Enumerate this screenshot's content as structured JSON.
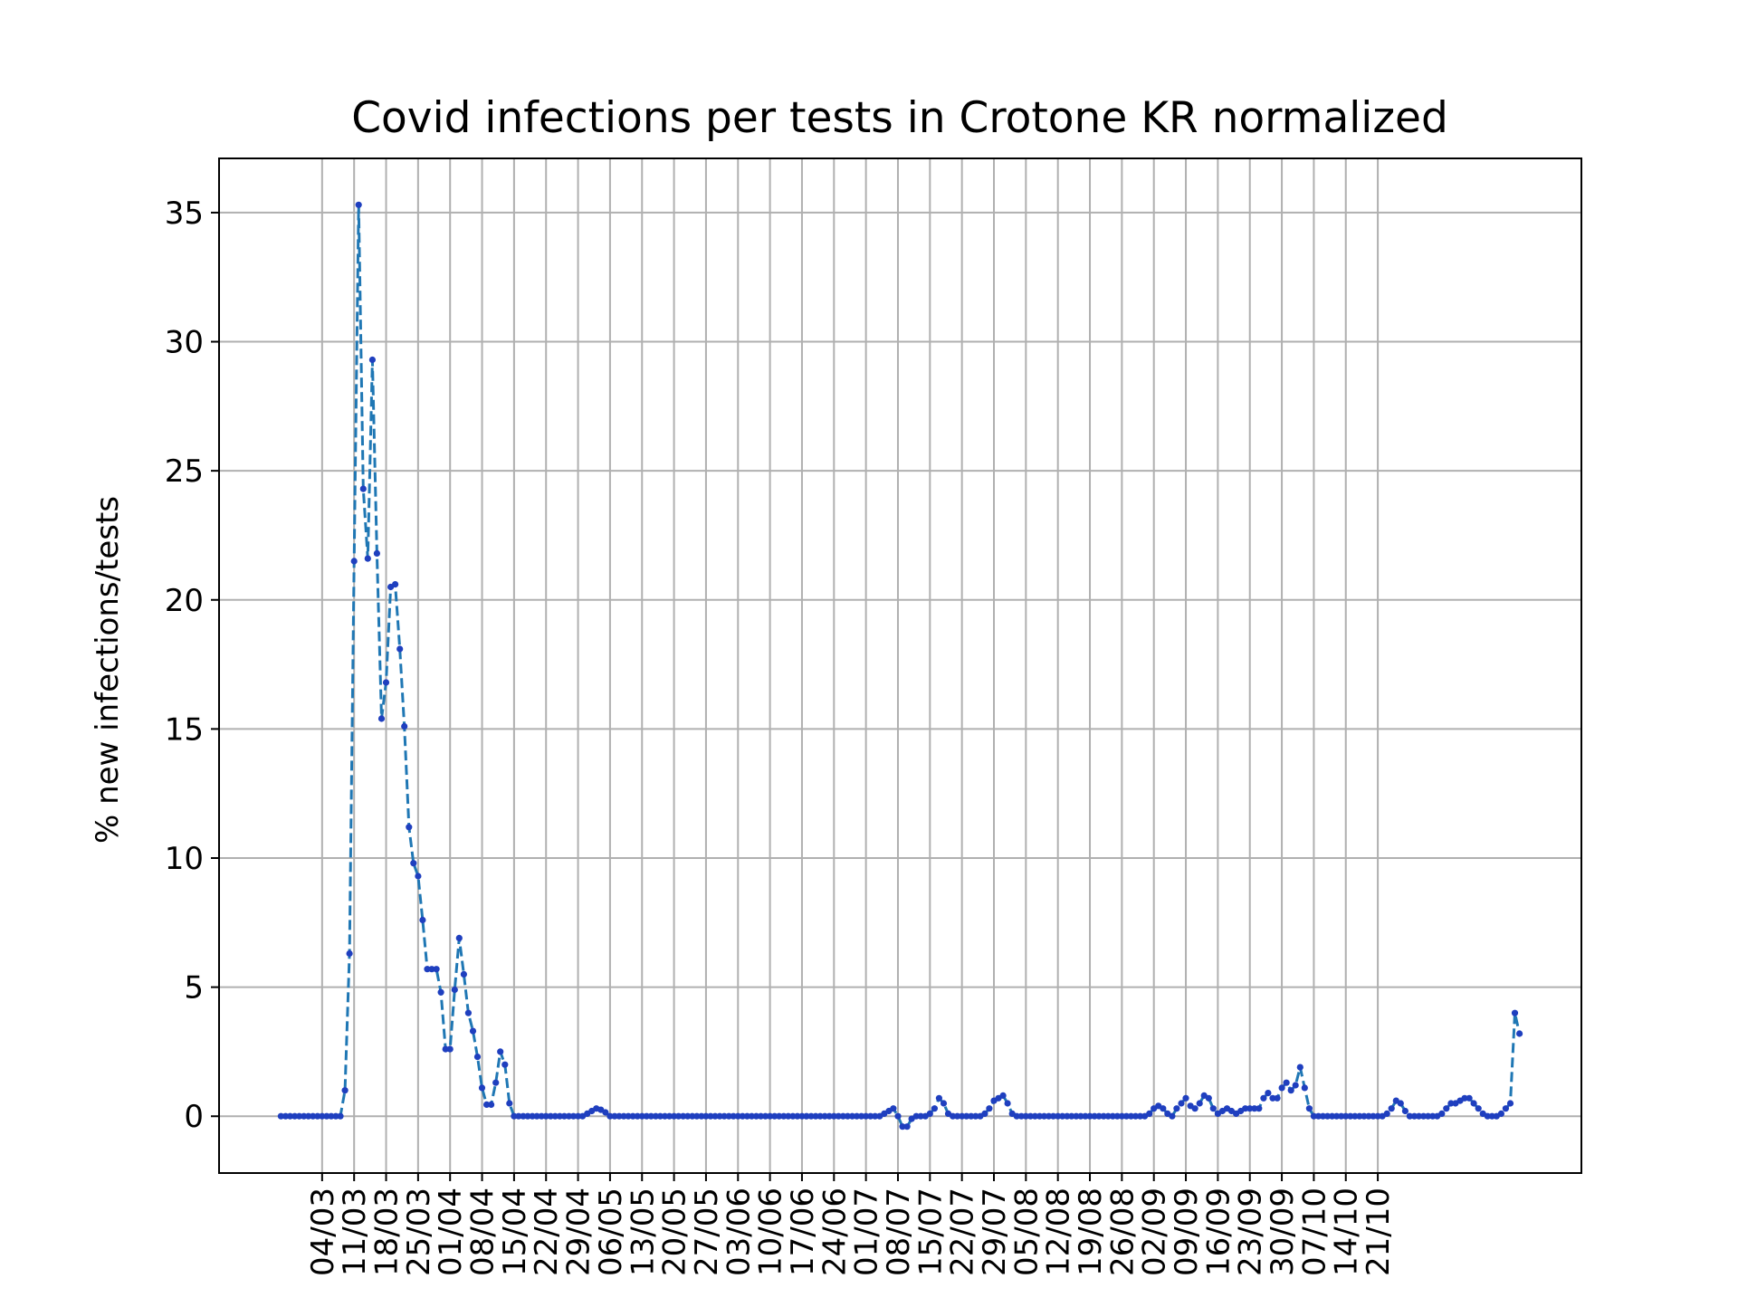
{
  "chart_data": {
    "type": "line",
    "title": "Covid infections per tests in Crotone KR normalized",
    "xlabel": "",
    "ylabel": "% new infections/tests",
    "start_date": "2020-02-24",
    "x_tick_labels": [
      "04/03",
      "11/03",
      "18/03",
      "25/03",
      "01/04",
      "08/04",
      "15/04",
      "22/04",
      "29/04",
      "06/05",
      "13/05",
      "20/05",
      "27/05",
      "03/06",
      "10/06",
      "17/06",
      "24/06",
      "01/07",
      "08/07",
      "15/07",
      "22/07",
      "29/07",
      "05/08",
      "12/08",
      "19/08",
      "26/08",
      "02/09",
      "09/09",
      "16/09",
      "23/09",
      "30/09",
      "07/10",
      "14/10",
      "21/10"
    ],
    "y_ticks": [
      0,
      5,
      10,
      15,
      20,
      25,
      30,
      35
    ],
    "ylim": [
      -2.2,
      37.1
    ],
    "grid": true,
    "line_color": "#1f77b4",
    "marker_color": "#1f3fbf",
    "series": [
      {
        "values": [
          0,
          0,
          0,
          0,
          0,
          0,
          0,
          0,
          0,
          0,
          0,
          0,
          0,
          0,
          1.0,
          6.3,
          21.5,
          35.3,
          24.3,
          21.6,
          29.3,
          21.8,
          15.4,
          16.8,
          20.5,
          20.6,
          18.1,
          15.1,
          11.2,
          9.8,
          9.3,
          7.6,
          5.7,
          5.7,
          5.7,
          4.8,
          2.6,
          2.6,
          4.9,
          6.9,
          5.5,
          4.0,
          3.3,
          2.3,
          1.1,
          0.45,
          0.45,
          1.3,
          2.5,
          2.0,
          0.5,
          0,
          0,
          0,
          0,
          0,
          0,
          0,
          0,
          0,
          0,
          0,
          0,
          0,
          0,
          0,
          0,
          0.1,
          0.2,
          0.3,
          0.25,
          0.15,
          0,
          0,
          0,
          0,
          0,
          0,
          0,
          0,
          0,
          0,
          0,
          0,
          0,
          0,
          0,
          0,
          0,
          0,
          0,
          0,
          0,
          0,
          0,
          0,
          0,
          0,
          0,
          0,
          0,
          0,
          0,
          0,
          0,
          0,
          0,
          0,
          0,
          0,
          0,
          0,
          0,
          0,
          0,
          0,
          0,
          0,
          0,
          0,
          0,
          0,
          0,
          0,
          0,
          0,
          0,
          0,
          0,
          0,
          0,
          0,
          0.1,
          0.2,
          0.3,
          0,
          -0.4,
          -0.4,
          -0.1,
          0,
          0,
          0,
          0.1,
          0.3,
          0.7,
          0.5,
          0.1,
          0,
          0,
          0,
          0,
          0,
          0,
          0,
          0.1,
          0.3,
          0.6,
          0.7,
          0.8,
          0.5,
          0.1,
          0,
          0,
          0,
          0,
          0,
          0,
          0,
          0,
          0,
          0,
          0,
          0,
          0,
          0,
          0,
          0,
          0,
          0,
          0,
          0,
          0,
          0,
          0,
          0,
          0,
          0,
          0,
          0,
          0,
          0.1,
          0.3,
          0.4,
          0.3,
          0.1,
          0,
          0.3,
          0.5,
          0.7,
          0.4,
          0.3,
          0.5,
          0.8,
          0.7,
          0.3,
          0.1,
          0.2,
          0.3,
          0.2,
          0.1,
          0.2,
          0.3,
          0.3,
          0.3,
          0.3,
          0.7,
          0.9,
          0.7,
          0.7,
          1.1,
          1.3,
          1.0,
          1.2,
          1.9,
          1.1,
          0.3,
          0,
          0,
          0,
          0,
          0,
          0,
          0,
          0,
          0,
          0,
          0,
          0,
          0,
          0,
          0,
          0,
          0.1,
          0.3,
          0.6,
          0.5,
          0.2,
          0,
          0,
          0,
          0,
          0,
          0,
          0,
          0.1,
          0.3,
          0.5,
          0.5,
          0.6,
          0.7,
          0.7,
          0.5,
          0.3,
          0.1,
          0,
          0,
          0,
          0.1,
          0.3,
          0.5,
          4.0,
          3.2
        ]
      }
    ]
  }
}
